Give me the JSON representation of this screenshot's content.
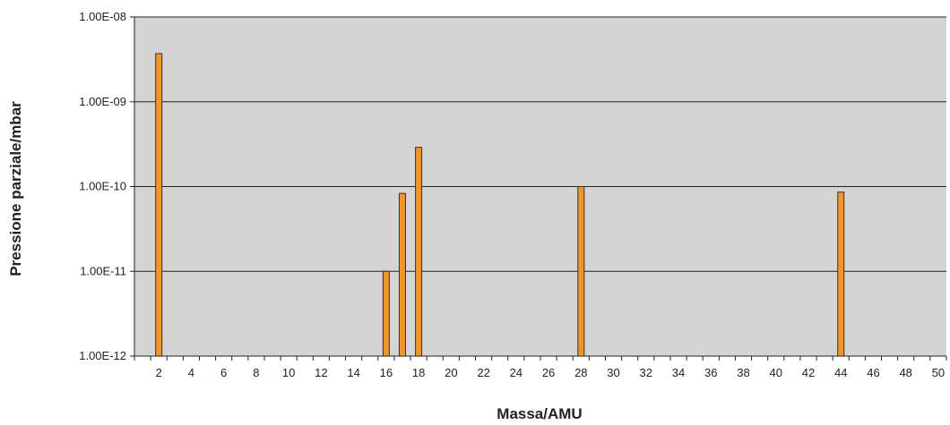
{
  "chart_data": {
    "type": "bar",
    "title": "",
    "xlabel": "Massa/AMU",
    "ylabel": "Pressione parziale/mbar",
    "yscale": "log",
    "ylim": [
      1e-12,
      1e-08
    ],
    "xlim": [
      1,
      50
    ],
    "ytick_values": [
      1e-12,
      1e-11,
      1e-10,
      1e-09,
      1e-08
    ],
    "ytick_labels": [
      "1.00E-12",
      "1.00E-11",
      "1.00E-10",
      "1.00E-09",
      "1.00E-08"
    ],
    "xtick_labels": [
      "2",
      "4",
      "6",
      "8",
      "10",
      "12",
      "14",
      "16",
      "18",
      "20",
      "22",
      "24",
      "26",
      "28",
      "30",
      "32",
      "34",
      "36",
      "38",
      "40",
      "42",
      "44",
      "46",
      "48",
      "50"
    ],
    "grid": true,
    "legend": "none",
    "x": [
      2,
      16,
      17,
      18,
      28,
      44
    ],
    "values": [
      3.7e-09,
      1e-11,
      8.3e-11,
      2.9e-10,
      1e-10,
      8.6e-11
    ],
    "colors": {
      "bar_fill": "#f7941d",
      "bar_stroke": "#333333",
      "plot_background": "#d4d4d4",
      "grid_line": "#222222"
    }
  }
}
